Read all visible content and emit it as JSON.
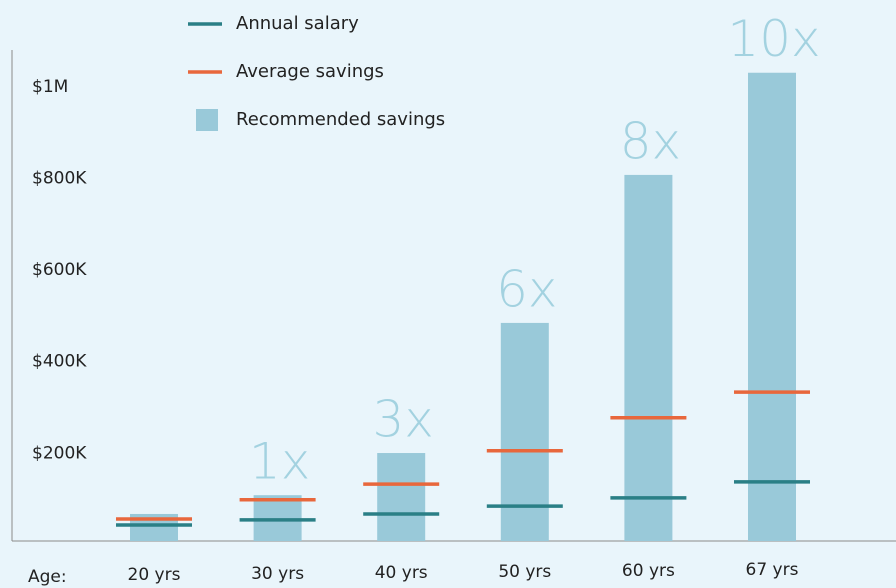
{
  "chart_data": {
    "type": "bar",
    "x_label": "Age:",
    "categories": [
      "20 yrs",
      "30 yrs",
      "40 yrs",
      "50 yrs",
      "60 yrs",
      "67 yrs"
    ],
    "series": [
      {
        "name": "Recommended savings",
        "color": "#99c9d9",
        "kind": "bar",
        "values": [
          59000,
          100000,
          192000,
          476000,
          799000,
          1022000
        ]
      },
      {
        "name": "Annual salary",
        "color": "#2a7f86",
        "kind": "level",
        "values": [
          35000,
          46000,
          59000,
          76000,
          94000,
          129000
        ]
      },
      {
        "name": "Average savings",
        "color": "#e8673c",
        "kind": "level",
        "values": [
          48000,
          90000,
          124000,
          197000,
          269000,
          325000
        ]
      }
    ],
    "annotations": [
      null,
      "1x",
      "3x",
      "6x",
      "8x",
      "10x"
    ],
    "ylim": [
      0,
      1100000
    ],
    "yticks": [
      {
        "value": 200000,
        "label": "$200K"
      },
      {
        "value": 400000,
        "label": "$400K"
      },
      {
        "value": 600000,
        "label": "$600K"
      },
      {
        "value": 800000,
        "label": "$800K"
      },
      {
        "value": 1000000,
        "label": "$1M"
      }
    ],
    "grid": false
  }
}
